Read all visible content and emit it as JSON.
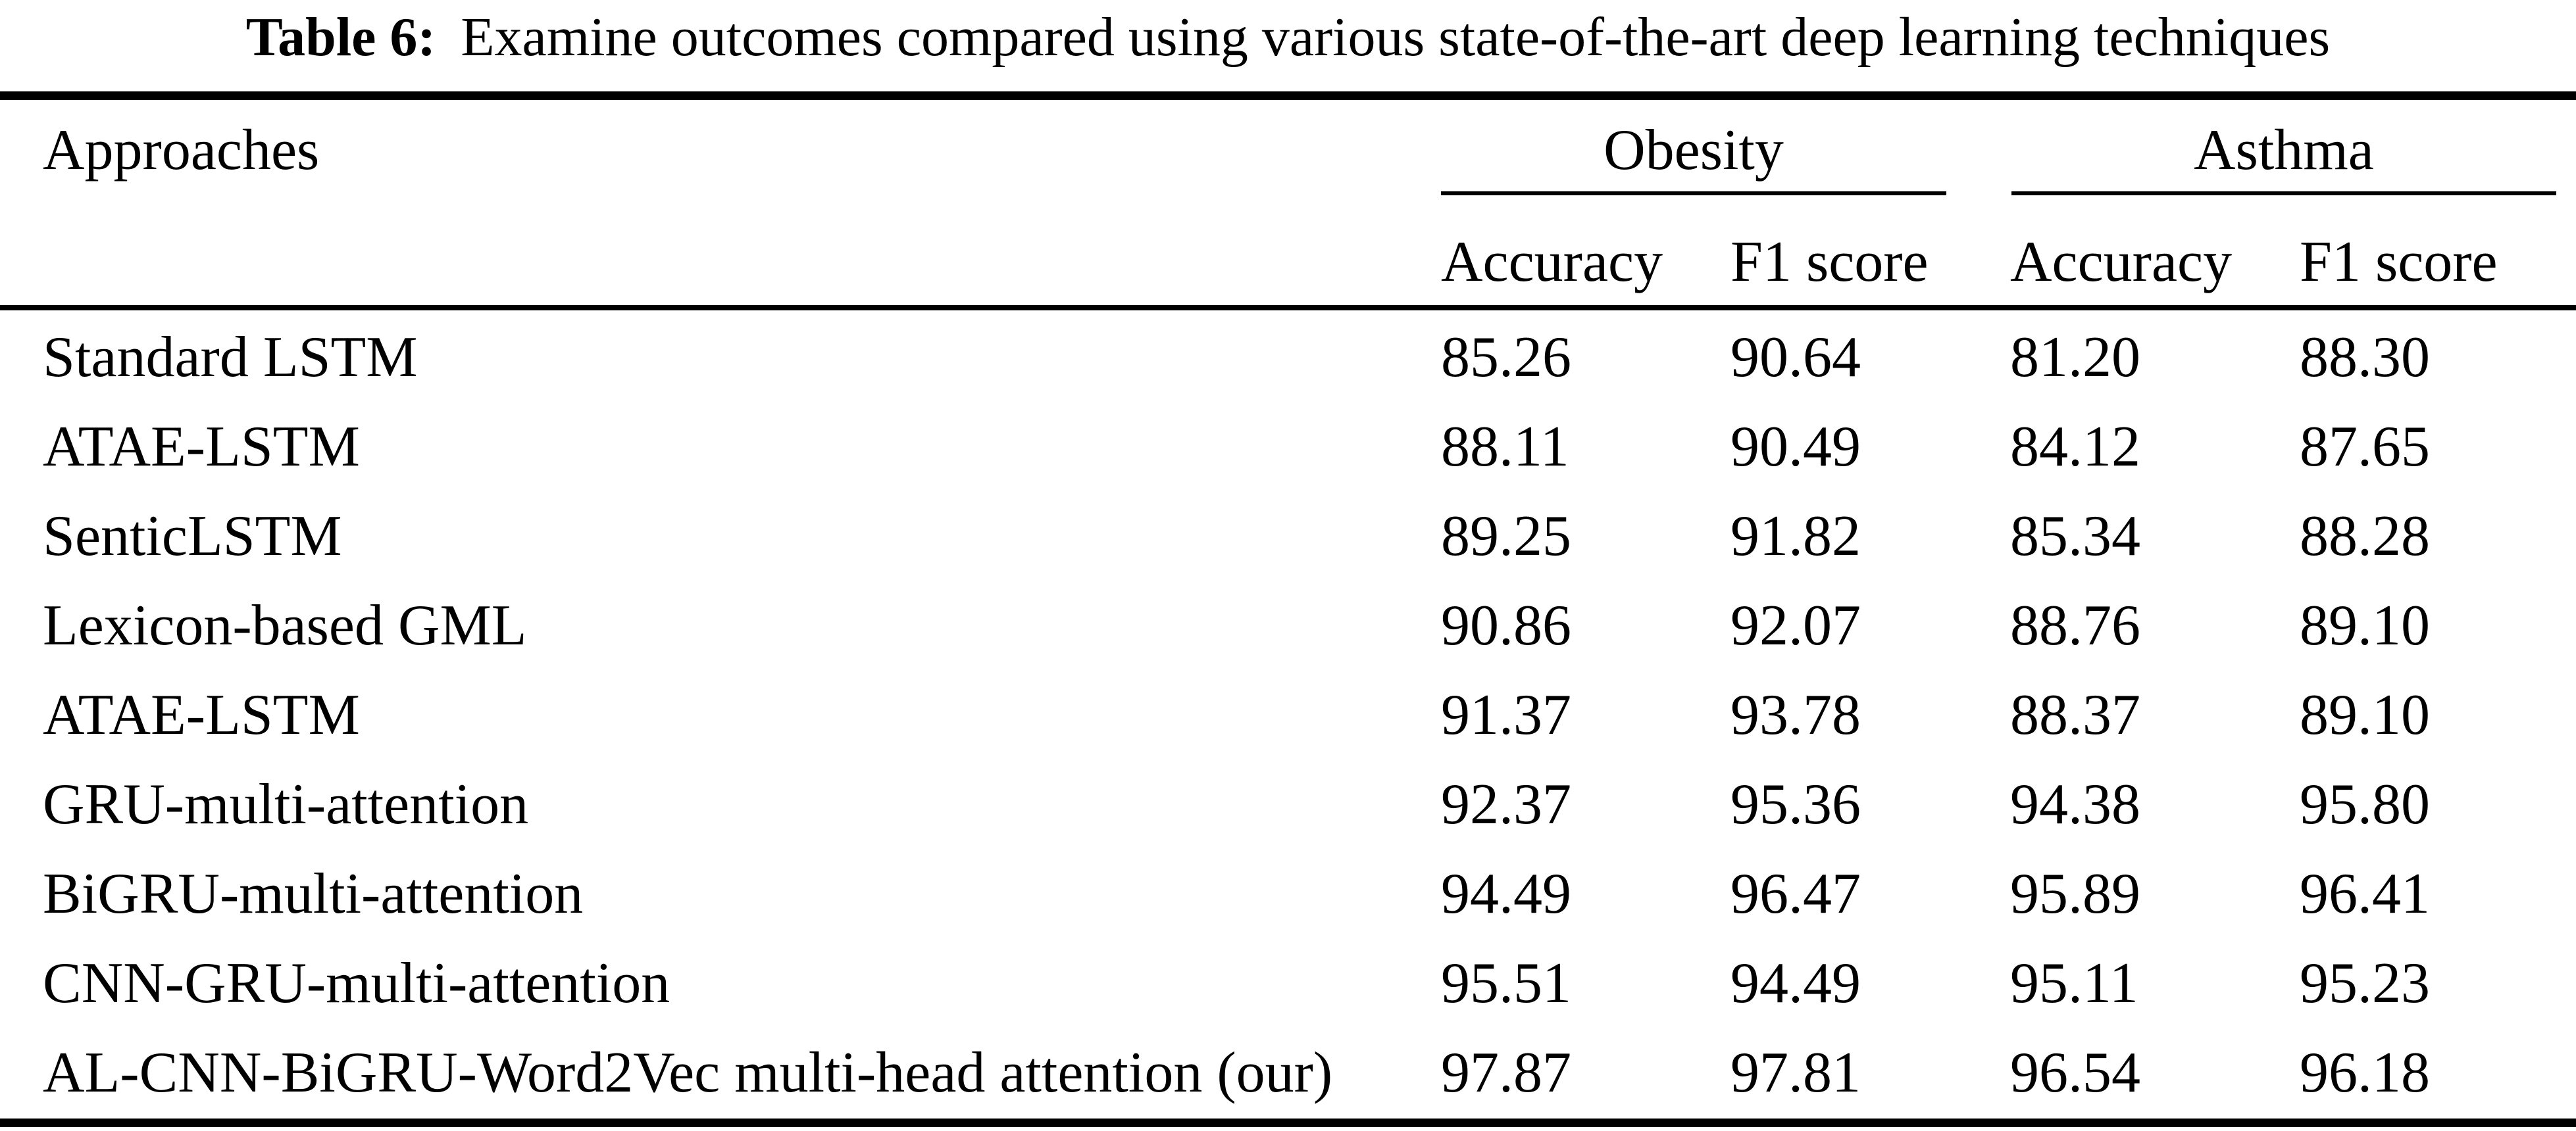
{
  "caption": {
    "label": "Table 6:",
    "text": "Examine outcomes compared using various state-of-the-art deep learning techniques"
  },
  "table": {
    "header": {
      "approaches": "Approaches",
      "groups": [
        {
          "label": "Obesity",
          "columns": [
            "Accuracy",
            "F1 score"
          ]
        },
        {
          "label": "Asthma",
          "columns": [
            "Accuracy",
            "F1 score"
          ]
        }
      ]
    },
    "rows": [
      {
        "approach": "Standard LSTM",
        "values": [
          "85.26",
          "90.64",
          "81.20",
          "88.30"
        ]
      },
      {
        "approach": "ATAE-LSTM",
        "values": [
          "88.11",
          "90.49",
          "84.12",
          "87.65"
        ]
      },
      {
        "approach": "SenticLSTM",
        "values": [
          "89.25",
          "91.82",
          "85.34",
          "88.28"
        ]
      },
      {
        "approach": "Lexicon-based GML",
        "values": [
          "90.86",
          "92.07",
          "88.76",
          "89.10"
        ]
      },
      {
        "approach": "ATAE-LSTM",
        "values": [
          "91.37",
          "93.78",
          "88.37",
          "89.10"
        ]
      },
      {
        "approach": "GRU-multi-attention",
        "values": [
          "92.37",
          "95.36",
          "94.38",
          "95.80"
        ]
      },
      {
        "approach": "BiGRU-multi-attention",
        "values": [
          "94.49",
          "96.47",
          "95.89",
          "96.41"
        ]
      },
      {
        "approach": "CNN-GRU-multi-attention",
        "values": [
          "95.51",
          "94.49",
          "95.11",
          "95.23"
        ]
      },
      {
        "approach": "AL-CNN-BiGRU-Word2Vec multi-head attention (our)",
        "values": [
          "97.87",
          "97.81",
          "96.54",
          "96.18"
        ]
      }
    ]
  },
  "chart_data": {
    "type": "table",
    "title": "Table 6: Examine outcomes compared using various state-of-the-art deep learning techniques",
    "column_groups": [
      "Obesity",
      "Asthma"
    ],
    "columns": [
      "Approaches",
      "Obesity Accuracy",
      "Obesity F1 score",
      "Asthma Accuracy",
      "Asthma F1 score"
    ],
    "rows": [
      [
        "Standard LSTM",
        85.26,
        90.64,
        81.2,
        88.3
      ],
      [
        "ATAE-LSTM",
        88.11,
        90.49,
        84.12,
        87.65
      ],
      [
        "SenticLSTM",
        89.25,
        91.82,
        85.34,
        88.28
      ],
      [
        "Lexicon-based GML",
        90.86,
        92.07,
        88.76,
        89.1
      ],
      [
        "ATAE-LSTM",
        91.37,
        93.78,
        88.37,
        89.1
      ],
      [
        "GRU-multi-attention",
        92.37,
        95.36,
        94.38,
        95.8
      ],
      [
        "BiGRU-multi-attention",
        94.49,
        96.47,
        95.89,
        96.41
      ],
      [
        "CNN-GRU-multi-attention",
        95.51,
        94.49,
        95.11,
        95.23
      ],
      [
        "AL-CNN-BiGRU-Word2Vec multi-head attention (our)",
        97.87,
        97.81,
        96.54,
        96.18
      ]
    ],
    "colors": {
      "text": "#000000",
      "background": "#ffffff",
      "rules": "#000000"
    }
  }
}
